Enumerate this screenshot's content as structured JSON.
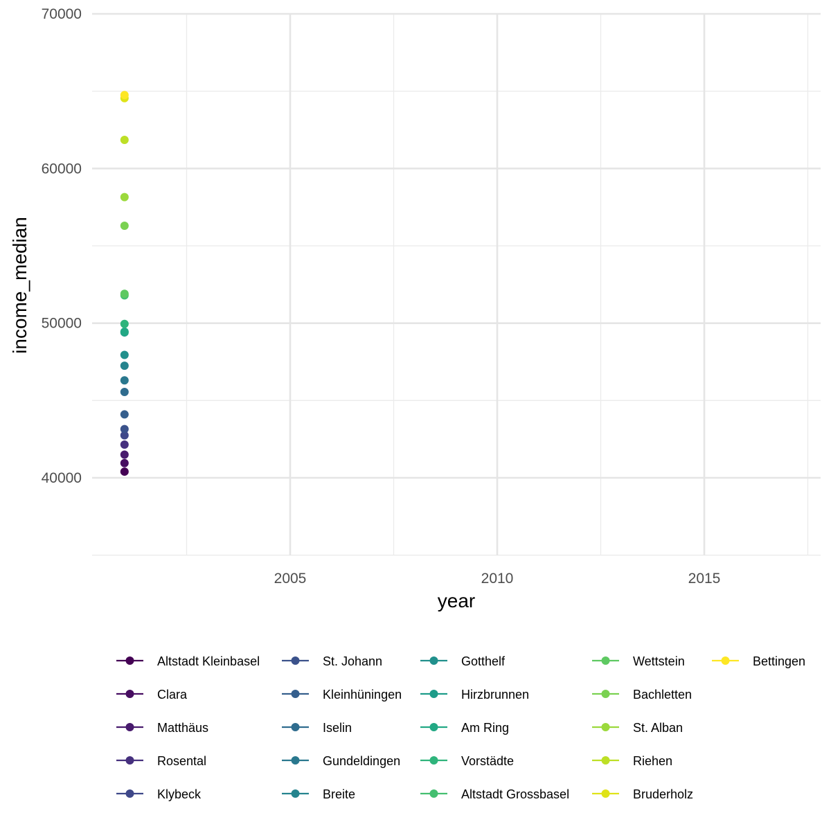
{
  "chart_data": {
    "type": "scatter",
    "title": "",
    "xlabel": "year",
    "ylabel": "income_median",
    "xlim": [
      2000.5,
      2017.7
    ],
    "ylim": [
      35000,
      70000
    ],
    "x_major_ticks": [
      2005,
      2010,
      2015
    ],
    "x_minor_ticks": [
      2002.5,
      2007.5,
      2012.5,
      2017.5
    ],
    "y_major_ticks": [
      40000,
      50000,
      60000,
      70000
    ],
    "y_minor_ticks": [
      35000,
      45000,
      55000,
      65000
    ],
    "grid": true,
    "legend_position": "bottom",
    "series": [
      {
        "name": "Altstadt Kleinbasel",
        "color": "#440154",
        "x": [
          2001
        ],
        "y": [
          40400
        ]
      },
      {
        "name": "Clara",
        "color": "#470E61",
        "x": [
          2001
        ],
        "y": [
          40950
        ]
      },
      {
        "name": "Matthäus",
        "color": "#481B6D",
        "x": [
          2001
        ],
        "y": [
          41500
        ]
      },
      {
        "name": "Rosental",
        "color": "#46307E",
        "x": [
          2001
        ],
        "y": [
          42150
        ]
      },
      {
        "name": "Klybeck",
        "color": "#3F4889",
        "x": [
          2001
        ],
        "y": [
          42750
        ]
      },
      {
        "name": "St. Johann",
        "color": "#3B528B",
        "x": [
          2001
        ],
        "y": [
          43150
        ]
      },
      {
        "name": "Kleinhüningen",
        "color": "#355F8D",
        "x": [
          2001
        ],
        "y": [
          44100
        ]
      },
      {
        "name": "Iselin",
        "color": "#2F6C8E",
        "x": [
          2001
        ],
        "y": [
          45550
        ]
      },
      {
        "name": "Gundeldingen",
        "color": "#2A788E",
        "x": [
          2001
        ],
        "y": [
          46300
        ]
      },
      {
        "name": "Breite",
        "color": "#25848E",
        "x": [
          2001
        ],
        "y": [
          47250
        ]
      },
      {
        "name": "Gotthelf",
        "color": "#21908C",
        "x": [
          2001
        ],
        "y": [
          47950
        ]
      },
      {
        "name": "Hirzbrunnen",
        "color": "#1E9C89",
        "x": [
          2001
        ],
        "y": [
          49400
        ]
      },
      {
        "name": "Am Ring",
        "color": "#22A884",
        "x": [
          2001
        ],
        "y": [
          49450
        ]
      },
      {
        "name": "Vorstädte",
        "color": "#2FB47C",
        "x": [
          2001
        ],
        "y": [
          49950
        ]
      },
      {
        "name": "Altstadt Grossbasel",
        "color": "#44BF70",
        "x": [
          2001
        ],
        "y": [
          51800
        ]
      },
      {
        "name": "Wettstein",
        "color": "#5EC962",
        "x": [
          2001
        ],
        "y": [
          51900
        ]
      },
      {
        "name": "Bachletten",
        "color": "#7AD151",
        "x": [
          2001
        ],
        "y": [
          56300
        ]
      },
      {
        "name": "St. Alban",
        "color": "#9BD93C",
        "x": [
          2001
        ],
        "y": [
          58150
        ]
      },
      {
        "name": "Riehen",
        "color": "#BDDF26",
        "x": [
          2001
        ],
        "y": [
          61850
        ]
      },
      {
        "name": "Bruderholz",
        "color": "#DFE318",
        "x": [
          2001
        ],
        "y": [
          64550
        ]
      },
      {
        "name": "Bettingen",
        "color": "#FDE725",
        "x": [
          2001
        ],
        "y": [
          64750
        ]
      }
    ]
  }
}
